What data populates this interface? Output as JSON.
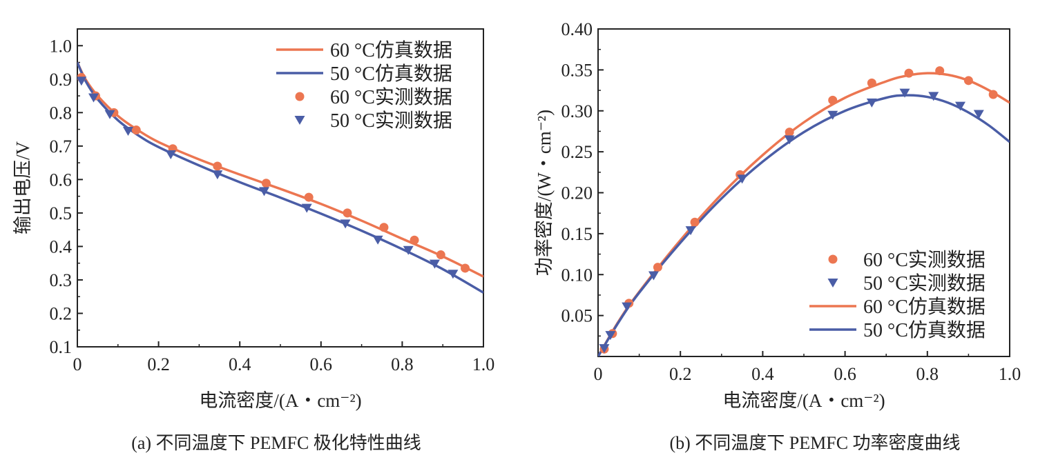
{
  "colors": {
    "c60": "#EC7651",
    "c50": "#4A5DA6",
    "axis": "#222222"
  },
  "chart_data": [
    {
      "type": "line",
      "title": "",
      "caption": "(a) 不同温度下 PEMFC 极化特性曲线",
      "xlabel": "电流密度/(A・cm⁻²)",
      "ylabel": "输出电压/V",
      "xlim": [
        0,
        1.0
      ],
      "ylim": [
        0.1,
        1.05
      ],
      "xticks": [
        0,
        0.2,
        0.4,
        0.6,
        0.8,
        1.0
      ],
      "xtick_labels": [
        "0",
        "0.2",
        "0.4",
        "0.6",
        "0.8",
        "1.0"
      ],
      "yticks": [
        0.1,
        0.2,
        0.3,
        0.4,
        0.5,
        0.6,
        0.7,
        0.8,
        0.9,
        1.0
      ],
      "ytick_labels": [
        "0.1",
        "0.2",
        "0.3",
        "0.4",
        "0.5",
        "0.6",
        "0.7",
        "0.8",
        "0.9",
        "1.0"
      ],
      "legend_position": "top-right",
      "series": [
        {
          "name": "60 °C仿真数据",
          "kind": "line",
          "color": "#EC7651",
          "x": [
            0,
            0.02,
            0.05,
            0.1,
            0.15,
            0.2,
            0.3,
            0.4,
            0.5,
            0.6,
            0.7,
            0.8,
            0.9,
            1.0
          ],
          "y": [
            0.95,
            0.9,
            0.85,
            0.79,
            0.747,
            0.712,
            0.66,
            0.615,
            0.572,
            0.527,
            0.477,
            0.423,
            0.37,
            0.31
          ]
        },
        {
          "name": "50 °C仿真数据",
          "kind": "line",
          "color": "#4A5DA6",
          "x": [
            0,
            0.02,
            0.05,
            0.1,
            0.15,
            0.2,
            0.3,
            0.4,
            0.5,
            0.6,
            0.7,
            0.8,
            0.9,
            1.0
          ],
          "y": [
            0.95,
            0.895,
            0.84,
            0.777,
            0.732,
            0.697,
            0.642,
            0.592,
            0.546,
            0.498,
            0.447,
            0.392,
            0.332,
            0.262
          ]
        },
        {
          "name": "60 °C实测数据",
          "kind": "circle",
          "color": "#EC7651",
          "x": [
            0.01,
            0.045,
            0.09,
            0.145,
            0.235,
            0.345,
            0.465,
            0.57,
            0.665,
            0.755,
            0.83,
            0.895,
            0.955
          ],
          "y": [
            0.905,
            0.85,
            0.8,
            0.748,
            0.692,
            0.64,
            0.589,
            0.547,
            0.5,
            0.457,
            0.419,
            0.375,
            0.335
          ]
        },
        {
          "name": "50 °C实测数据",
          "kind": "triangle",
          "color": "#4A5DA6",
          "x": [
            0.01,
            0.04,
            0.08,
            0.125,
            0.23,
            0.345,
            0.46,
            0.565,
            0.66,
            0.74,
            0.815,
            0.88,
            0.925
          ],
          "y": [
            0.895,
            0.845,
            0.795,
            0.745,
            0.675,
            0.615,
            0.565,
            0.515,
            0.468,
            0.42,
            0.389,
            0.348,
            0.318
          ]
        }
      ]
    },
    {
      "type": "line",
      "title": "",
      "caption": "(b) 不同温度下 PEMFC 功率密度曲线",
      "xlabel": "电流密度/(A・cm⁻²)",
      "ylabel": "功率密度/(W・cm⁻²)",
      "xlim": [
        0,
        1.0
      ],
      "ylim": [
        0,
        0.4
      ],
      "xticks": [
        0,
        0.2,
        0.4,
        0.6,
        0.8,
        1.0
      ],
      "xtick_labels": [
        "0",
        "0.2",
        "0.4",
        "0.6",
        "0.8",
        "1.0"
      ],
      "yticks": [
        0.05,
        0.1,
        0.15,
        0.2,
        0.25,
        0.3,
        0.35,
        0.4
      ],
      "ytick_labels": [
        "0.05",
        "0.10",
        "0.15",
        "0.20",
        "0.25",
        "0.30",
        "0.35",
        "0.40"
      ],
      "legend_position": "bottom-right",
      "series": [
        {
          "name": "60 °C实测数据",
          "kind": "circle",
          "color": "#EC7651",
          "x": [
            0.015,
            0.035,
            0.075,
            0.145,
            0.235,
            0.345,
            0.465,
            0.57,
            0.665,
            0.755,
            0.83,
            0.9,
            0.96
          ],
          "y": [
            0.009,
            0.028,
            0.065,
            0.109,
            0.164,
            0.222,
            0.274,
            0.313,
            0.334,
            0.346,
            0.349,
            0.337,
            0.32
          ]
        },
        {
          "name": "50 °C实测数据",
          "kind": "triangle",
          "color": "#4A5DA6",
          "x": [
            0.015,
            0.03,
            0.07,
            0.135,
            0.225,
            0.35,
            0.465,
            0.57,
            0.665,
            0.745,
            0.815,
            0.88,
            0.925
          ],
          "y": [
            0.01,
            0.026,
            0.061,
            0.099,
            0.154,
            0.217,
            0.265,
            0.295,
            0.31,
            0.322,
            0.318,
            0.306,
            0.296
          ]
        },
        {
          "name": "60 °C仿真数据",
          "kind": "line",
          "color": "#EC7651",
          "x": [
            0,
            0.05,
            0.1,
            0.2,
            0.3,
            0.4,
            0.5,
            0.6,
            0.7,
            0.75,
            0.8,
            0.85,
            0.9,
            0.95,
            1.0
          ],
          "y": [
            0,
            0.043,
            0.079,
            0.142,
            0.198,
            0.246,
            0.286,
            0.316,
            0.336,
            0.343,
            0.346,
            0.344,
            0.337,
            0.325,
            0.31
          ]
        },
        {
          "name": "50 °C仿真数据",
          "kind": "line",
          "color": "#4A5DA6",
          "x": [
            0,
            0.05,
            0.1,
            0.2,
            0.3,
            0.4,
            0.5,
            0.6,
            0.7,
            0.75,
            0.8,
            0.85,
            0.9,
            0.95,
            1.0
          ],
          "y": [
            0,
            0.042,
            0.078,
            0.139,
            0.193,
            0.238,
            0.274,
            0.3,
            0.316,
            0.319,
            0.317,
            0.31,
            0.298,
            0.282,
            0.262
          ]
        }
      ]
    }
  ]
}
